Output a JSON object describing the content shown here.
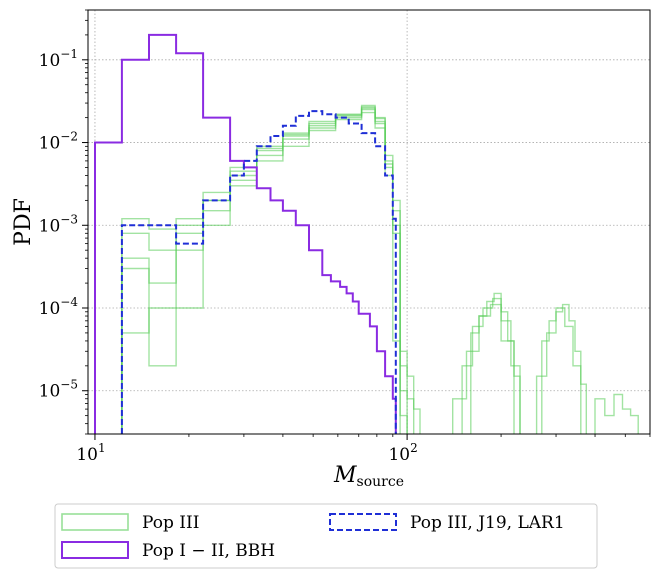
{
  "chart_data": {
    "type": "line",
    "subtype": "step-histogram",
    "title": "",
    "xlabel_main": "M",
    "xlabel_sub": "source",
    "ylabel": "PDF",
    "x_scale": "log",
    "y_scale": "log",
    "xlim": [
      9.5,
      600
    ],
    "ylim": [
      3e-06,
      0.4
    ],
    "x_ticks": [
      {
        "value": 10,
        "base": "10",
        "exp": "1"
      },
      {
        "value": 100,
        "base": "10",
        "exp": "2"
      }
    ],
    "y_ticks": [
      {
        "value": 0.1,
        "base": "10",
        "exp": "−1"
      },
      {
        "value": 0.01,
        "base": "10",
        "exp": "−2"
      },
      {
        "value": 0.001,
        "base": "10",
        "exp": "−3"
      },
      {
        "value": 0.0001,
        "base": "10",
        "exp": "−4"
      },
      {
        "value": 1e-05,
        "base": "10",
        "exp": "−5"
      }
    ],
    "grid": true,
    "legend_position": "bottom-outside",
    "colors": {
      "popIII": "#55cc55",
      "popI_II": "#8a2be2",
      "j19": "#1f2fd6",
      "grid": "#aaaaaa"
    },
    "legend": [
      {
        "label": "Pop III",
        "series": "popIII"
      },
      {
        "label": "Pop III, J19, LAR1",
        "series": "j19"
      },
      {
        "label": "Pop I − II, BBH",
        "series": "popI_II"
      }
    ],
    "series": [
      {
        "key": "popI_II",
        "edges": [
          10,
          12.2,
          14.9,
          18.2,
          22.2,
          27.1,
          30,
          33,
          36.5,
          40,
          44,
          48.5,
          53.5,
          57,
          61,
          64,
          67,
          70,
          73,
          76,
          80,
          85,
          90,
          92
        ],
        "values": [
          0.01,
          0.1,
          0.2,
          0.12,
          0.02,
          0.006,
          0.005,
          0.0028,
          0.002,
          0.0015,
          0.001,
          0.0005,
          0.00025,
          0.00021,
          0.00018,
          0.00015,
          0.00012,
          8.5e-05,
          8.5e-05,
          6e-05,
          3e-05,
          1.5e-05,
          8e-06
        ]
      },
      {
        "key": "j19",
        "edges": [
          12.2,
          14.9,
          18.2,
          22.2,
          27.1,
          30,
          33,
          36.5,
          40,
          44,
          48.5,
          53.5,
          59,
          65,
          71.5,
          79,
          85,
          90,
          92
        ],
        "values": [
          0.001,
          0.001,
          0.0006,
          0.002,
          0.004,
          0.006,
          0.009,
          0.012,
          0.016,
          0.021,
          0.024,
          0.022,
          0.02,
          0.017,
          0.013,
          0.009,
          0.004,
          0.0012
        ]
      }
    ],
    "pop_iii_realizations": [
      {
        "edges": [
          12.2,
          14.9,
          18.2,
          22.2,
          27.1,
          33,
          40,
          48.5,
          59,
          71.5,
          79,
          85,
          90,
          95,
          100,
          105,
          110
        ],
        "values": [
          0.0012,
          0.0009,
          0.001,
          0.0025,
          0.005,
          0.009,
          0.013,
          0.018,
          0.022,
          0.026,
          0.018,
          0.006,
          0.0015,
          3e-05,
          1.5e-05,
          6e-06
        ]
      },
      {
        "edges": [
          12.2,
          14.9,
          18.2,
          22.2,
          27.1,
          33,
          40,
          48.5,
          59,
          71.5,
          79,
          85,
          90,
          95,
          100,
          105
        ],
        "values": [
          0.0004,
          0.0002,
          0.0005,
          0.0015,
          0.003,
          0.006,
          0.009,
          0.014,
          0.019,
          0.028,
          0.02,
          0.005,
          0.0008,
          2e-05,
          8e-06
        ]
      },
      {
        "edges": [
          12.2,
          14.9,
          18.2,
          22.2,
          27.1,
          33,
          40,
          48.5,
          59,
          71.5,
          79,
          85,
          90,
          95
        ],
        "values": [
          5e-05,
          0.0001,
          0.0008,
          0.002,
          0.004,
          0.008,
          0.012,
          0.016,
          0.02,
          0.023,
          0.015,
          0.004,
          4e-05
        ]
      },
      {
        "edges": [
          12.2,
          14.9,
          18.2,
          22.2,
          27.1,
          33,
          40,
          48.5,
          59,
          71.5,
          79,
          85,
          90,
          95,
          100
        ],
        "values": [
          0.0003,
          2e-05,
          0.0001,
          0.001,
          0.0035,
          0.007,
          0.011,
          0.015,
          0.021,
          0.025,
          0.017,
          0.007,
          0.002,
          1e-05
        ]
      },
      {
        "edges": [
          12.2,
          14.9,
          18.2,
          22.2,
          27.1,
          33,
          40,
          48.5,
          59,
          71.5,
          79,
          85,
          90,
          95,
          100
        ],
        "values": [
          0.0008,
          0.0005,
          0.0012,
          0.002,
          0.0045,
          0.0085,
          0.0125,
          0.017,
          0.0215,
          0.027,
          0.0195,
          0.0055,
          0.001,
          5e-06
        ]
      },
      {
        "edges": [
          160,
          170,
          180,
          190,
          200,
          210,
          220,
          230
        ],
        "values": [
          5e-05,
          8e-05,
          0.00012,
          0.00015,
          9e-05,
          4e-05,
          1.5e-05
        ]
      },
      {
        "edges": [
          150,
          162,
          175,
          188,
          200,
          215,
          230
        ],
        "values": [
          2e-05,
          6e-05,
          0.0001,
          0.00013,
          7e-05,
          2e-05
        ]
      },
      {
        "edges": [
          140,
          155,
          170,
          185,
          200,
          220
        ],
        "values": [
          8e-06,
          3e-05,
          8e-05,
          0.00011,
          4e-05
        ]
      },
      {
        "edges": [
          270,
          285,
          300,
          315,
          330,
          345,
          360,
          375
        ],
        "values": [
          4e-05,
          7e-05,
          9e-05,
          0.00011,
          7e-05,
          3e-05,
          1.2e-05
        ]
      },
      {
        "edges": [
          260,
          280,
          300,
          320,
          340,
          360
        ],
        "values": [
          1.5e-05,
          5e-05,
          0.0001,
          6e-05,
          2e-05
        ]
      },
      {
        "edges": [
          400,
          430,
          460,
          490,
          520,
          550
        ],
        "values": [
          8e-06,
          5e-06,
          9e-06,
          6e-06,
          5e-06
        ]
      }
    ]
  }
}
